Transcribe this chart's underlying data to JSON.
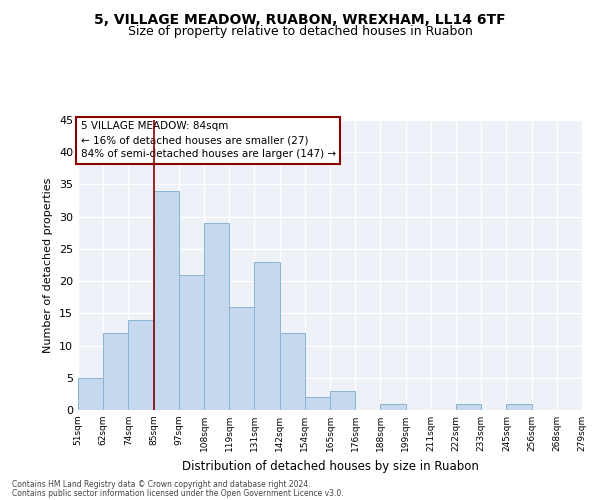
{
  "title1": "5, VILLAGE MEADOW, RUABON, WREXHAM, LL14 6TF",
  "title2": "Size of property relative to detached houses in Ruabon",
  "xlabel": "Distribution of detached houses by size in Ruabon",
  "ylabel": "Number of detached properties",
  "bar_values": [
    5,
    12,
    14,
    34,
    21,
    29,
    16,
    23,
    12,
    2,
    3,
    0,
    1,
    0,
    0,
    1,
    0,
    1,
    0,
    0
  ],
  "xtick_labels": [
    "51sqm",
    "62sqm",
    "74sqm",
    "85sqm",
    "97sqm",
    "108sqm",
    "119sqm",
    "131sqm",
    "142sqm",
    "154sqm",
    "165sqm",
    "176sqm",
    "188sqm",
    "199sqm",
    "211sqm",
    "222sqm",
    "233sqm",
    "245sqm",
    "256sqm",
    "268sqm",
    "279sqm"
  ],
  "bar_color": "#c5d8ed",
  "bar_edge_color": "#8ab4d4",
  "vline_index": 3,
  "vline_color": "#8b0000",
  "ylim": [
    0,
    45
  ],
  "yticks": [
    0,
    5,
    10,
    15,
    20,
    25,
    30,
    35,
    40,
    45
  ],
  "annotation_lines": [
    "5 VILLAGE MEADOW: 84sqm",
    "← 16% of detached houses are smaller (27)",
    "84% of semi-detached houses are larger (147) →"
  ],
  "annotation_box_color": "#ffffff",
  "annotation_border_color": "#8b0000",
  "footer1": "Contains HM Land Registry data © Crown copyright and database right 2024.",
  "footer2": "Contains public sector information licensed under the Open Government Licence v3.0.",
  "bg_color": "#eef2f8",
  "title1_fontsize": 10,
  "title2_fontsize": 9
}
